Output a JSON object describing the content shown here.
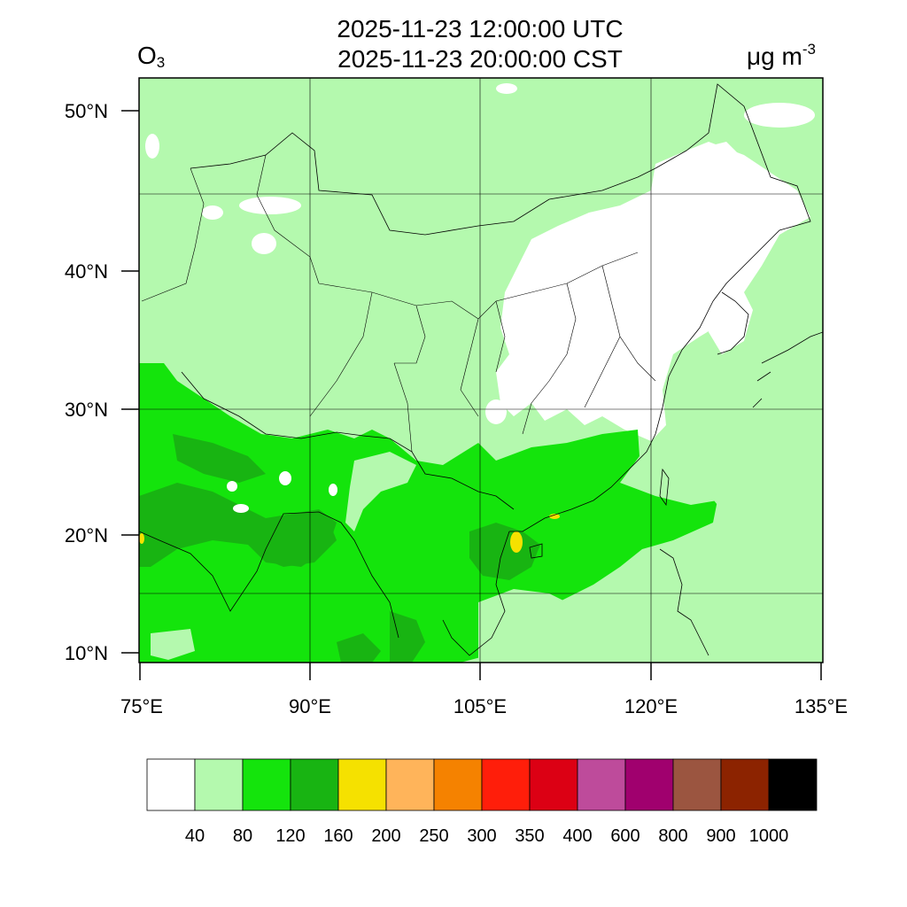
{
  "title": {
    "utc": "2025-11-23 12:00:00 UTC",
    "cst": "2025-11-23 20:00:00 CST"
  },
  "species": {
    "main": "O",
    "sub": "3"
  },
  "units": {
    "main": "μg m",
    "sup": "-3"
  },
  "map": {
    "lon_range": [
      75,
      135
    ],
    "lat_range": [
      9,
      52.5
    ],
    "lat_ticks": [
      {
        "value": 50,
        "label": "50°N"
      },
      {
        "value": 40,
        "label": "40°N"
      },
      {
        "value": 30,
        "label": "30°N"
      },
      {
        "value": 20,
        "label": "20°N"
      },
      {
        "value": 10,
        "label": "10°N"
      }
    ],
    "lon_ticks": [
      {
        "value": 75,
        "label": "75°E"
      },
      {
        "value": 90,
        "label": "90°E"
      },
      {
        "value": 105,
        "label": "105°E"
      },
      {
        "value": 120,
        "label": "120°E"
      },
      {
        "value": 135,
        "label": "135°E"
      }
    ]
  },
  "colorbar": {
    "colors": [
      "#ffffff",
      "#b4f9ae",
      "#14e40c",
      "#18b412",
      "#f5e100",
      "#ffb45a",
      "#f58200",
      "#ff1e0a",
      "#dc0014",
      "#be4b9b",
      "#a0006e",
      "#9b5540",
      "#8c2300",
      "#000000"
    ],
    "labels": [
      "40",
      "80",
      "120",
      "160",
      "200",
      "250",
      "300",
      "350",
      "400",
      "600",
      "800",
      "900",
      "1000"
    ]
  }
}
